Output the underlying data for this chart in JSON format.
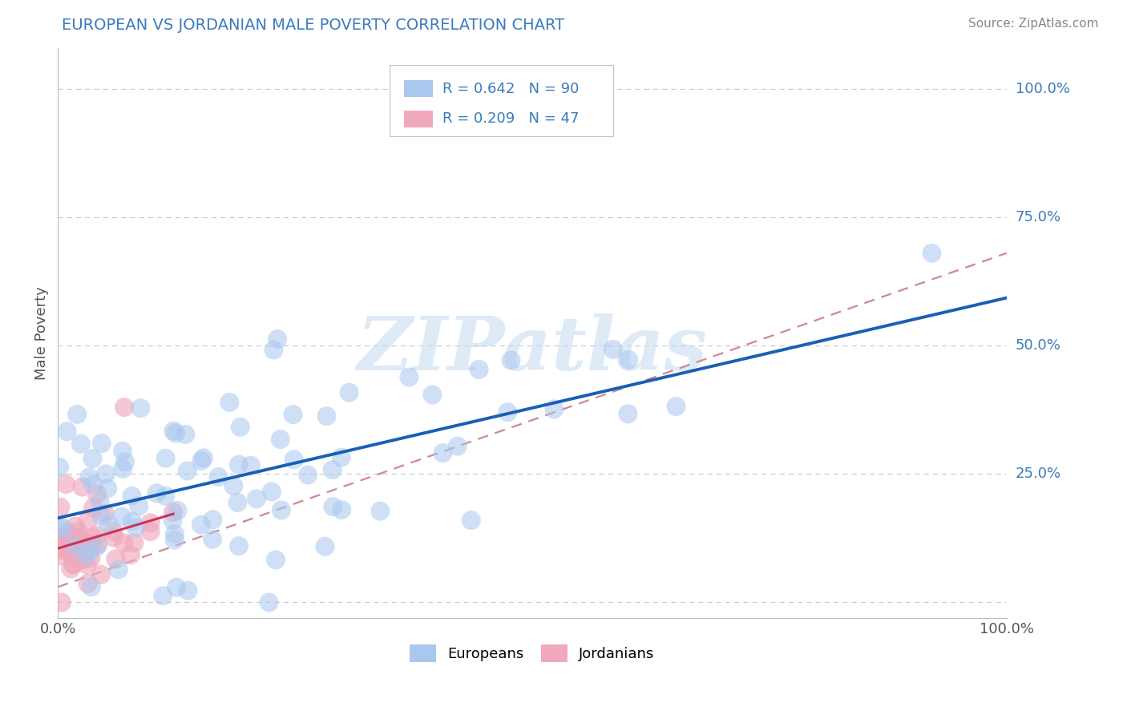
{
  "title": "EUROPEAN VS JORDANIAN MALE POVERTY CORRELATION CHART",
  "source": "Source: ZipAtlas.com",
  "ylabel": "Male Poverty",
  "xlim": [
    0.0,
    1.0
  ],
  "ylim": [
    -0.03,
    1.08
  ],
  "european_color": "#a8c8f0",
  "jordanian_color": "#f0a8bc",
  "european_R": 0.642,
  "european_N": 90,
  "jordanian_R": 0.209,
  "jordanian_N": 47,
  "trend_eu_color": "#1a5fb4",
  "trend_jo_color": "#cc3355",
  "trend_dashed_color": "#cc6677",
  "watermark_text": "ZIPatlas",
  "watermark_color": "#c8ddf0",
  "background_color": "#ffffff",
  "grid_color": "#cccccc",
  "title_color": "#3a7abf",
  "legend_R_color": "#3a7abf",
  "axis_label_color": "#555555",
  "right_label_color": "#3a7abf",
  "source_color": "#888888"
}
